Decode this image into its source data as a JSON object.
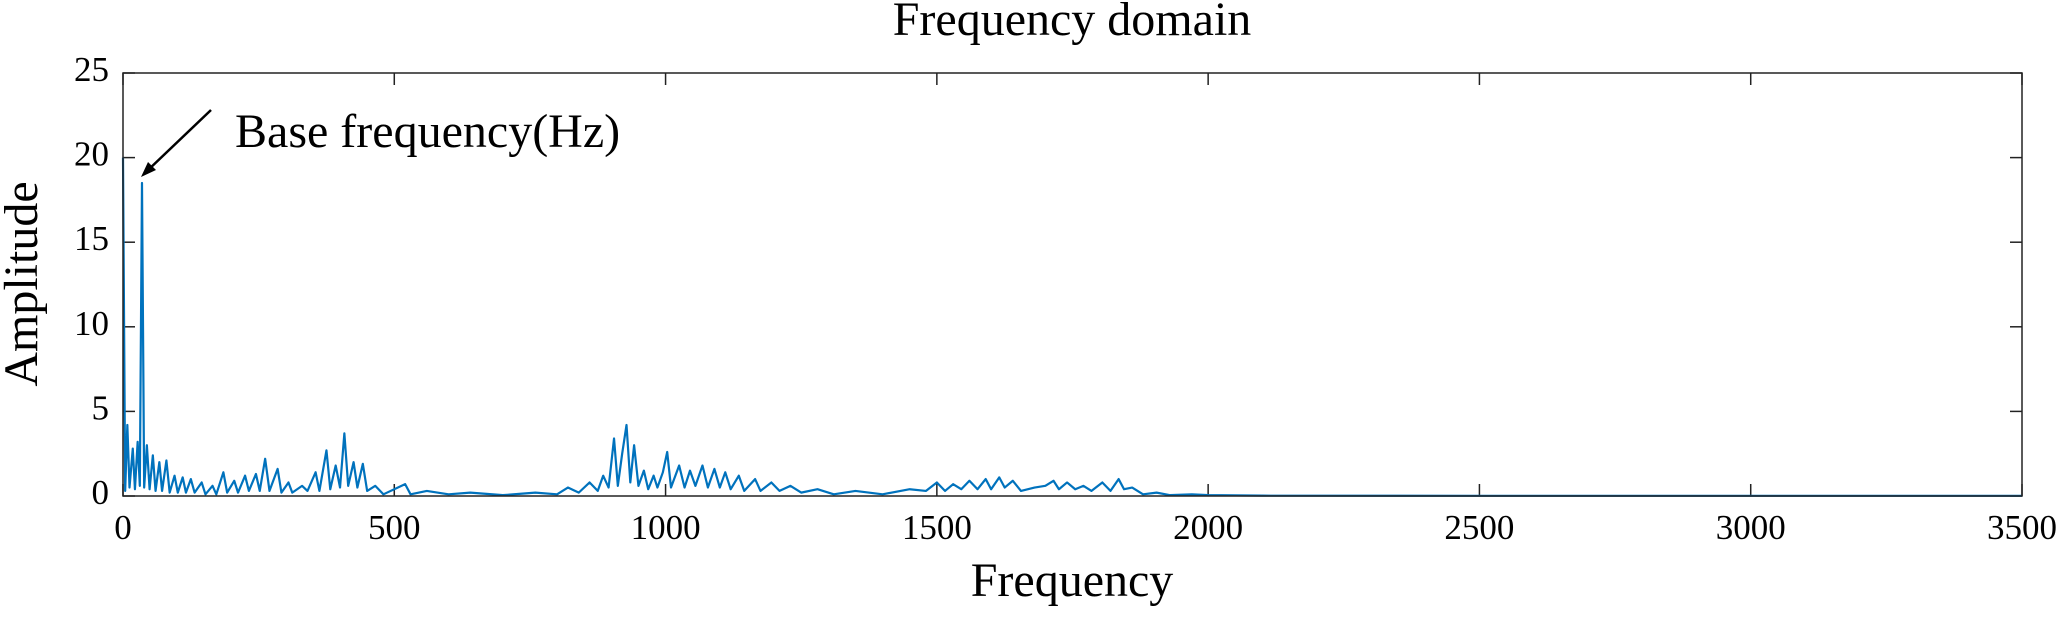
{
  "chart_data": {
    "type": "line",
    "title": "Frequency domain",
    "x_label": "Frequency",
    "y_label": "Amplitude",
    "annotation": "Base frequency(Hz)",
    "color": "#0072bd",
    "grid": false,
    "xlim": [
      0,
      3500
    ],
    "xticks": [
      0,
      500,
      1000,
      1500,
      2000,
      2500,
      3000,
      3500
    ],
    "ylim": [
      0,
      25
    ],
    "yticks": [
      0,
      5,
      10,
      15,
      20,
      25
    ],
    "x": [
      0,
      4,
      8,
      12,
      18,
      22,
      27,
      31,
      35,
      39,
      44,
      49,
      55,
      60,
      67,
      72,
      80,
      86,
      95,
      101,
      110,
      116,
      125,
      132,
      145,
      152,
      165,
      172,
      185,
      192,
      205,
      212,
      225,
      232,
      245,
      252,
      262,
      270,
      285,
      292,
      305,
      312,
      330,
      340,
      355,
      362,
      375,
      382,
      392,
      400,
      408,
      415,
      425,
      432,
      442,
      450,
      465,
      480,
      520,
      530,
      560,
      600,
      640,
      700,
      760,
      800,
      820,
      840,
      860,
      875,
      885,
      895,
      905,
      912,
      920,
      928,
      935,
      942,
      950,
      960,
      968,
      978,
      985,
      995,
      1003,
      1010,
      1025,
      1035,
      1045,
      1055,
      1068,
      1078,
      1090,
      1100,
      1110,
      1120,
      1135,
      1145,
      1165,
      1175,
      1195,
      1210,
      1230,
      1250,
      1280,
      1310,
      1350,
      1400,
      1450,
      1480,
      1500,
      1515,
      1530,
      1545,
      1560,
      1575,
      1590,
      1600,
      1615,
      1625,
      1640,
      1655,
      1680,
      1700,
      1715,
      1725,
      1740,
      1755,
      1770,
      1785,
      1805,
      1820,
      1835,
      1845,
      1860,
      1880,
      1905,
      1930,
      1970,
      2000,
      2100,
      2500,
      3000,
      3500
    ],
    "values": [
      20,
      0.3,
      4.2,
      0.5,
      2.8,
      0.4,
      3.2,
      0.6,
      18.5,
      0.5,
      3.0,
      0.4,
      2.4,
      0.3,
      2.0,
      0.3,
      2.1,
      0.2,
      1.2,
      0.2,
      1.1,
      0.2,
      1.0,
      0.2,
      0.8,
      0.1,
      0.6,
      0.1,
      1.4,
      0.2,
      0.9,
      0.2,
      1.2,
      0.3,
      1.3,
      0.3,
      2.2,
      0.3,
      1.6,
      0.2,
      0.8,
      0.2,
      0.6,
      0.3,
      1.4,
      0.3,
      2.7,
      0.4,
      1.8,
      0.5,
      3.7,
      0.6,
      2.0,
      0.5,
      1.9,
      0.3,
      0.6,
      0.1,
      0.7,
      0.1,
      0.3,
      0.1,
      0.2,
      0.05,
      0.2,
      0.1,
      0.5,
      0.2,
      0.8,
      0.3,
      1.2,
      0.5,
      3.4,
      0.6,
      2.5,
      4.2,
      0.8,
      3.0,
      0.6,
      1.5,
      0.4,
      1.2,
      0.5,
      1.4,
      2.6,
      0.5,
      1.8,
      0.5,
      1.5,
      0.6,
      1.8,
      0.5,
      1.6,
      0.5,
      1.4,
      0.4,
      1.2,
      0.3,
      1.0,
      0.3,
      0.8,
      0.3,
      0.6,
      0.2,
      0.4,
      0.1,
      0.3,
      0.1,
      0.4,
      0.3,
      0.8,
      0.3,
      0.7,
      0.4,
      0.9,
      0.4,
      1.0,
      0.4,
      1.1,
      0.5,
      0.9,
      0.3,
      0.5,
      0.6,
      0.9,
      0.4,
      0.8,
      0.4,
      0.6,
      0.3,
      0.8,
      0.3,
      1.0,
      0.4,
      0.5,
      0.1,
      0.2,
      0.05,
      0.1,
      0.05,
      0.02,
      0.01,
      0.01,
      0.01
    ]
  }
}
